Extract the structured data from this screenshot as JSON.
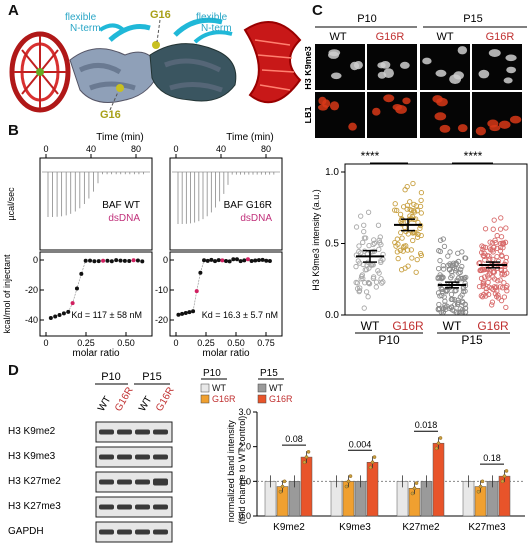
{
  "panels": {
    "A": {
      "label": "A",
      "annotations": {
        "flex_left": "flexible",
        "nterm_left": "N-term",
        "flex_right": "flexible",
        "nterm_right": "N-term",
        "g16_top": "G16",
        "g16_bottom": "G16"
      }
    },
    "B": {
      "label": "B",
      "time_label": "Time (min)",
      "time_ticks": [
        "0",
        "40",
        "80"
      ],
      "ylabel_top": "µcal/sec",
      "ylabel_bottom": "kcal/mol of injectant",
      "xlabel": "molar ratio",
      "left": {
        "name": "BAF WT",
        "ligand": "dsDNA",
        "kd": "Kd = 117 ± 58 nM",
        "x_ticks": [
          "0",
          "0.25",
          "0.50"
        ],
        "y_ticks": [
          "0",
          "-20",
          "-40"
        ]
      },
      "right": {
        "name": "BAF G16R",
        "ligand": "dsDNA",
        "kd": "Kd = 16.3 ± 5.7 nM",
        "x_ticks": [
          "0",
          "0.25",
          "0.50",
          "0.75"
        ],
        "y_ticks": [
          "0",
          "-10",
          "-20"
        ]
      }
    },
    "C": {
      "label": "C",
      "timepoints": [
        "P10",
        "P15"
      ],
      "genotypes": [
        "WT",
        "G16R",
        "WT",
        "G16R"
      ],
      "row_labels": [
        "H3 K9me3",
        "LB1"
      ],
      "significance": [
        "****",
        "****"
      ]
    },
    "D": {
      "label": "D",
      "timepoints": [
        "P10",
        "P15"
      ],
      "lanes": [
        "WT",
        "G16R",
        "WT",
        "G16R"
      ],
      "blot_labels": [
        "H3 K9me2",
        "H3 K9me3",
        "H3 K27me2",
        "H3 K27me3",
        "GAPDH"
      ],
      "legend": [
        {
          "time": "P10",
          "genotype": "WT",
          "color": "#e8e8e8"
        },
        {
          "time": "P10",
          "genotype": "G16R",
          "color": "#f0a030"
        },
        {
          "time": "P15",
          "genotype": "WT",
          "color": "#9a9a9a"
        },
        {
          "time": "P15",
          "genotype": "G16R",
          "color": "#e8542a"
        }
      ],
      "pvalues": [
        "0.08",
        "0.004",
        "0.018",
        "0.18"
      ]
    }
  },
  "chart_data": [
    {
      "type": "scatter",
      "ylabel": "H3 K9me3 intensity (a.u.)",
      "ylim": [
        0,
        1.0
      ],
      "y_ticks": [
        "0.0",
        "0.5",
        "1.0"
      ],
      "categories": [
        "WT",
        "G16R",
        "WT",
        "G16R"
      ],
      "groups": [
        "P10",
        "P15"
      ],
      "means": [
        0.41,
        0.63,
        0.21,
        0.35
      ],
      "sem": [
        0.04,
        0.04,
        0.02,
        0.02
      ],
      "colors": [
        "#a8a8a8",
        "#c8a040",
        "#8a8a8a",
        "#d86a6a"
      ]
    },
    {
      "type": "bar",
      "ylabel": "normalized band intensity (fold change to WT control)",
      "ylim": [
        0,
        3.0
      ],
      "y_ticks": [
        "0.0",
        "1.0",
        "2.0",
        "3.0"
      ],
      "categories": [
        "K9me2",
        "K9me3",
        "K27me2",
        "K27me3"
      ],
      "series": [
        {
          "name": "P10 WT",
          "values": [
            1.0,
            1.0,
            1.0,
            1.0
          ],
          "color": "#e8e8e8"
        },
        {
          "name": "P10 G16R",
          "values": [
            0.85,
            1.0,
            0.8,
            0.85
          ],
          "color": "#f0a030"
        },
        {
          "name": "P15 WT",
          "values": [
            1.0,
            1.0,
            1.0,
            1.0
          ],
          "color": "#9a9a9a"
        },
        {
          "name": "P15 G16R",
          "values": [
            1.7,
            1.55,
            2.1,
            1.15
          ],
          "color": "#e8542a"
        }
      ]
    }
  ]
}
